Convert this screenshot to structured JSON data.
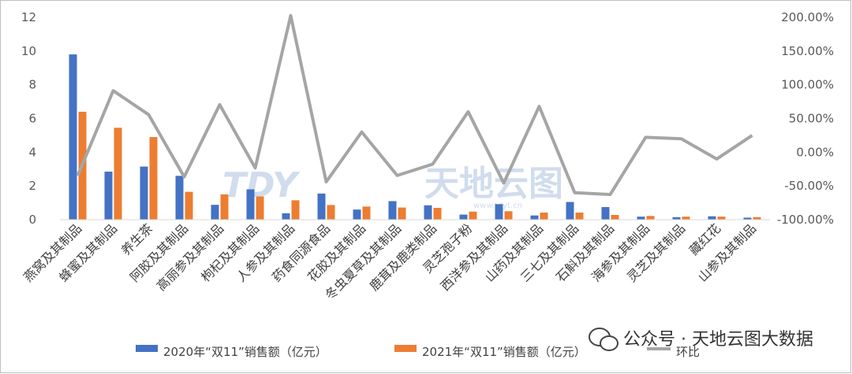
{
  "chart_data": {
    "type": "bar",
    "categories": [
      "燕窝及其制品",
      "蜂蜜及其制品",
      "养生茶",
      "阿胶及其制品",
      "高丽参及其制品",
      "枸杞及其制品",
      "人参及其制品",
      "药食同源食品",
      "花胶及其制品",
      "冬虫夏草及其制品",
      "鹿茸及鹿类制品",
      "灵芝孢子粉",
      "西洋参及其制品",
      "山药及其制品",
      "三七及其制品",
      "石斛及其制品",
      "海参及其制品",
      "灵芝及其制品",
      "藏红花",
      "山参及其制品"
    ],
    "series": [
      {
        "name": "2020年“双11”销售额（亿元）",
        "type": "bar",
        "axis": "left",
        "color": "#4472c4",
        "values": [
          9.8,
          2.85,
          3.15,
          2.6,
          0.88,
          1.8,
          0.38,
          1.55,
          0.6,
          1.1,
          0.85,
          0.3,
          0.92,
          0.25,
          1.05,
          0.75,
          0.18,
          0.15,
          0.2,
          0.12
        ]
      },
      {
        "name": "2021年“双11”销售额（亿元）",
        "type": "bar",
        "axis": "left",
        "color": "#ed7d31",
        "values": [
          6.4,
          5.45,
          4.9,
          1.65,
          1.5,
          1.38,
          1.15,
          0.87,
          0.78,
          0.72,
          0.7,
          0.48,
          0.5,
          0.42,
          0.42,
          0.28,
          0.22,
          0.18,
          0.18,
          0.15
        ]
      },
      {
        "name": "环比",
        "type": "line",
        "axis": "right",
        "color": "#a5a5a5",
        "values": [
          -34.7,
          91.2,
          55.6,
          -36.5,
          70.5,
          -23.3,
          202.6,
          -43.9,
          30.0,
          -34.5,
          -17.6,
          60.0,
          -45.7,
          68.0,
          -60.0,
          -62.7,
          22.2,
          20.0,
          -10.0,
          25.0
        ]
      }
    ],
    "y_left": {
      "min": 0,
      "max": 12,
      "ticks": [
        "0",
        "2",
        "4",
        "6",
        "8",
        "10",
        "12"
      ]
    },
    "y_right": {
      "min": -100,
      "max": 200,
      "ticks": [
        "-100.00%",
        "-50.00%",
        "0.00%",
        "50.00%",
        "100.00%",
        "150.00%",
        "200.00%"
      ]
    },
    "grid": false,
    "legend_position": "bottom"
  },
  "legend": {
    "bar2020": "2020年“双11”销售额（亿元）",
    "bar2021": "2021年“双11”销售额（亿元）",
    "line": "环比"
  },
  "watermark": {
    "logo_text": "TDY",
    "brand": "天地云图",
    "url": "www.tdyt.cn"
  },
  "footer": {
    "channel": "公众号 · 天地云图大数据"
  }
}
